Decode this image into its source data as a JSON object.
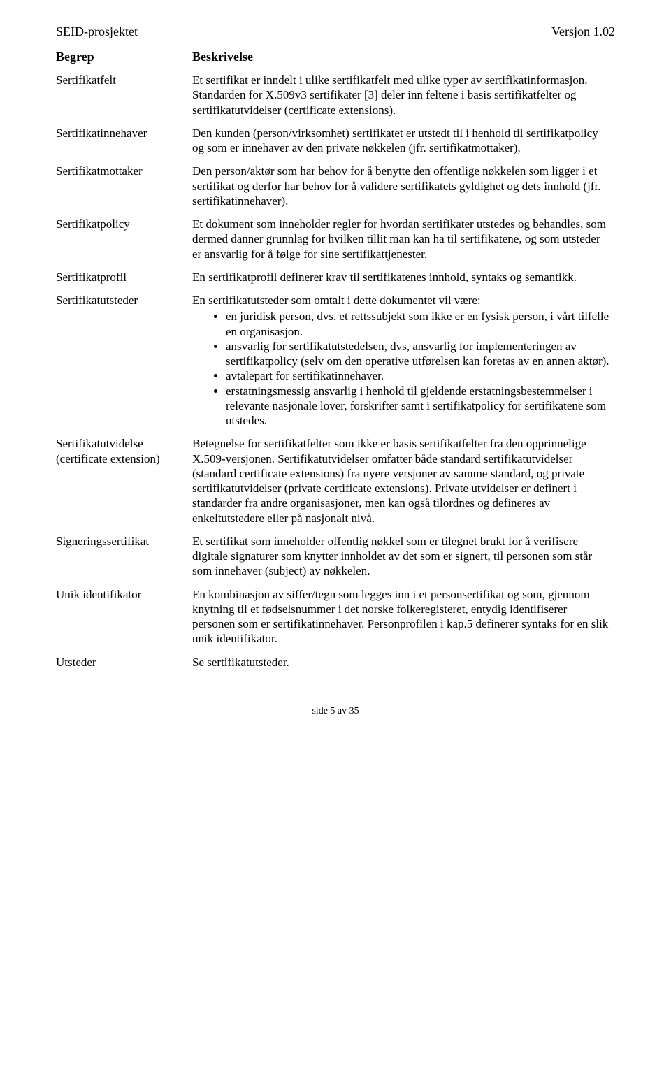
{
  "header": {
    "left": "SEID-prosjektet",
    "right": "Versjon 1.02"
  },
  "table": {
    "col1": "Begrep",
    "col2": "Beskrivelse",
    "rows": [
      {
        "term": "Sertifikatfelt",
        "desc_html": "Et sertifikat er inndelt i ulike sertifikatfelt med ulike typer av sertifikatinformasjon. Standarden for X.509v3 sertifikater [3] deler inn feltene i basis sertifikatfelter og sertifikatutvidelser (certificate extensions)."
      },
      {
        "term": "Sertifikatinnehaver",
        "desc_html": "Den kunden (person/virksomhet) sertifikatet er utstedt til i henhold til sertifikatpolicy og som er innehaver av den private nøkkelen (jfr. sertifikatmottaker)."
      },
      {
        "term": "Sertifikatmottaker",
        "desc_html": "Den person/aktør som har behov for å benytte den offentlige nøkkelen som ligger i et sertifikat og derfor har behov for å validere sertifikatets gyldighet og dets innhold (jfr. sertifikatinnehaver)."
      },
      {
        "term": "Sertifikatpolicy",
        "desc_html": "Et dokument som inneholder regler for hvordan sertifikater utstedes og behandles, som dermed danner grunnlag for hvilken tillit man kan ha til sertifikatene, og som utsteder er ansvarlig for å følge for sine sertifikattjenester."
      },
      {
        "term": "Sertifikatprofil",
        "desc_html": "En sertifikatprofil definerer krav til sertifikatenes innhold, syntaks og semantikk."
      },
      {
        "term": "Sertifikatutsteder",
        "desc_html": "<p>En sertifikatutsteder som omtalt i dette dokumentet vil være:</p><ul><li>en juridisk person, dvs. et rettssubjekt som ikke er en fysisk person, i vårt tilfelle en organisasjon.</li><li>ansvarlig for sertifikatutstedelsen, dvs, ansvarlig for implementeringen av sertifikatpolicy (selv om den operative utførelsen kan foretas av en annen aktør).</li><li>avtalepart for sertifikatinnehaver.</li><li>erstatningsmessig ansvarlig i henhold til gjeldende erstatningsbestemmelser i relevante nasjonale lover, forskrifter samt i sertifikatpolicy for sertifikatene som utstedes.</li></ul>"
      },
      {
        "term": "Sertifikatutvidelse (certificate extension)",
        "desc_html": "Betegnelse for sertifikatfelter som ikke er basis sertifikatfelter fra den opprinnelige X.509-versjonen. Sertifikatutvidelser omfatter både standard sertifikatutvidelser (standard certificate extensions) fra nyere versjoner av samme standard, og private sertifikatutvidelser (private certificate extensions). Private utvidelser er definert i standarder fra andre organisasjoner, men kan også tilordnes og defineres av enkeltutstedere eller på nasjonalt nivå."
      },
      {
        "term": "Signeringssertifikat",
        "desc_html": "Et sertifikat som inneholder offentlig nøkkel som er tilegnet brukt for å verifisere digitale signaturer som knytter innholdet av det som er signert, til personen som står som innehaver (subject) av nøkkelen."
      },
      {
        "term": "Unik identifikator",
        "desc_html": "En kombinasjon av siffer/tegn som legges inn i et personsertifikat og som, gjennom knytning til et fødselsnummer i det norske folkeregisteret, entydig identifiserer personen som er sertifikatinnehaver. Personprofilen i kap.5 definerer syntaks for en slik unik identifikator."
      },
      {
        "term": "Utsteder",
        "desc_html": "Se sertifikatutsteder."
      }
    ]
  },
  "footer": "side 5 av 35"
}
